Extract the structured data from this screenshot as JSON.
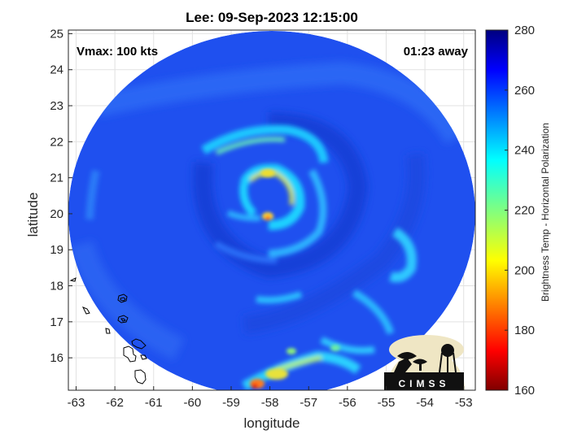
{
  "figure": {
    "title": "Lee: 09-Sep-2023 12:15:00",
    "xlabel": "longitude",
    "ylabel": "latitude",
    "vmax_label": "Vmax: 100 kts",
    "time_offset_label": "01:23 away",
    "logo_text": "CIMSS"
  },
  "chart_data": {
    "type": "heatmap",
    "title": "Lee: 09-Sep-2023 12:15:00",
    "xlabel": "longitude",
    "ylabel": "latitude",
    "xlim": [
      -63.2,
      -52.7
    ],
    "ylim": [
      15.1,
      25.1
    ],
    "xticks": [
      -63,
      -62,
      -61,
      -60,
      -59,
      -58,
      -57,
      -56,
      -55,
      -54,
      -53
    ],
    "yticks": [
      16,
      17,
      18,
      19,
      20,
      21,
      22,
      23,
      24,
      25
    ],
    "grid": true,
    "storm_center": {
      "lon": -58.15,
      "lat": 19.95
    },
    "colorbar": {
      "label": "Brightness Temp - Horizontal Polarization",
      "range": [
        160,
        280
      ],
      "ticks": [
        160,
        180,
        200,
        220,
        240,
        260,
        280
      ],
      "colormap": "jet"
    },
    "colors": {
      "background_cold": "#1e50f0",
      "rainband_cyan": "#1ec8ff",
      "eyewall_yellow": "#dde23a",
      "warm_core_red": "#ff3c14"
    }
  }
}
